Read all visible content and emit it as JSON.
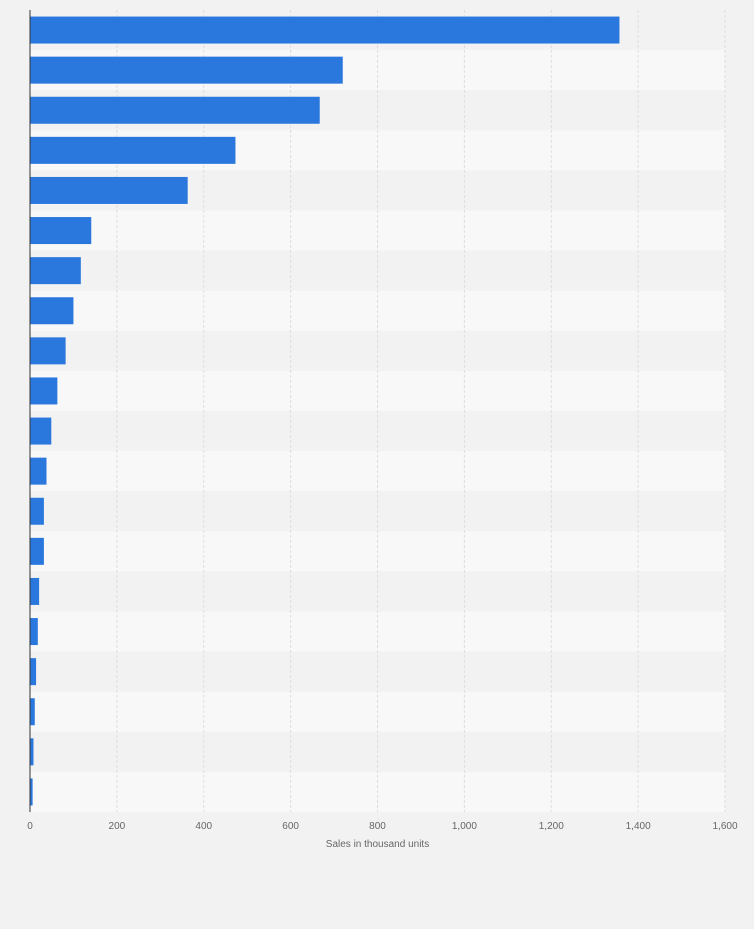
{
  "chart_data": {
    "type": "bar",
    "orientation": "horizontal",
    "xlabel": "Sales in thousand units",
    "ylabel": "",
    "xlim": [
      0,
      1600
    ],
    "x_ticks": [
      0,
      200,
      400,
      600,
      800,
      1000,
      1200,
      1400,
      1600
    ],
    "x_tick_labels": [
      "0",
      "200",
      "400",
      "600",
      "800",
      "1,000",
      "1,200",
      "1,400",
      "1,600"
    ],
    "categories": [
      "",
      "",
      "",
      "",
      "",
      "",
      "",
      "",
      "",
      "",
      "",
      "",
      "",
      "",
      "",
      "",
      "",
      "",
      "",
      ""
    ],
    "values": [
      1357,
      720,
      667,
      473,
      363,
      141,
      117,
      100,
      82,
      63,
      49,
      38,
      32,
      32,
      21,
      18,
      14,
      11,
      8,
      6
    ],
    "grid": true,
    "legend": "none",
    "colors": {
      "bar": "#2a78de",
      "page_background": "#f2f2f2",
      "band_light": "#f8f8f8",
      "band_dark": "#f2f2f2",
      "grid": "#dddddd",
      "axis": "#333333",
      "text": "#666666"
    }
  }
}
